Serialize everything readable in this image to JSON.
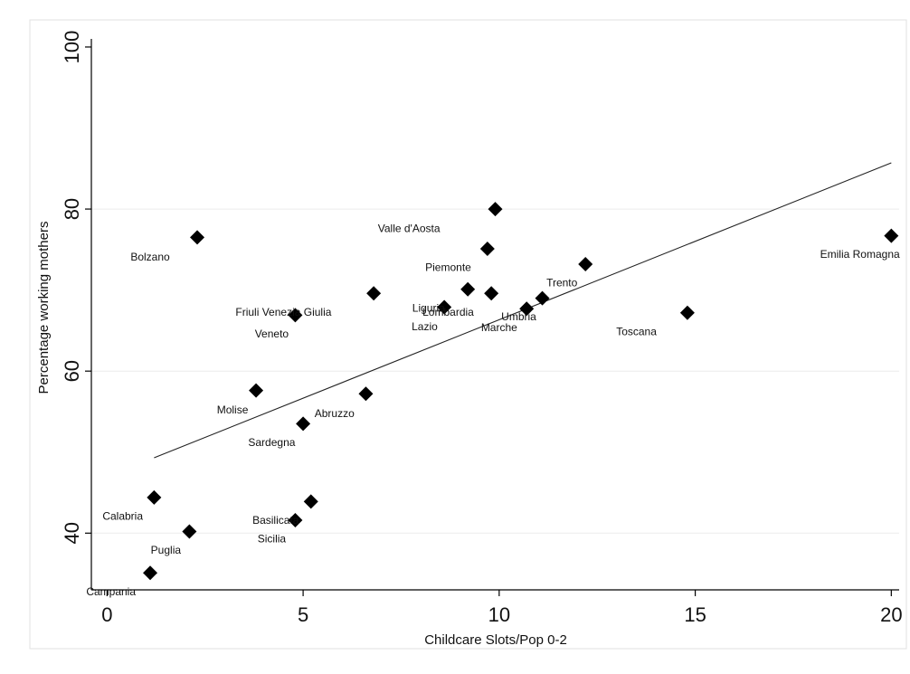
{
  "chart_data": {
    "type": "scatter",
    "title": "",
    "xlabel": "Childcare Slots/Pop 0-2",
    "ylabel": "Percentage working mothers",
    "xlim": [
      -0.4,
      20.2
    ],
    "ylim": [
      33,
      101
    ],
    "xticks": [
      0,
      5,
      10,
      15,
      20
    ],
    "yticks": [
      40,
      60,
      80,
      100
    ],
    "grid": "horizontal",
    "legend": "none",
    "marker_color": "#000000",
    "fit_line": {
      "x": [
        1.2,
        20
      ],
      "y": [
        49.3,
        85.7
      ]
    },
    "points": [
      {
        "name": "Valle d'Aosta",
        "x": 9.9,
        "y": 80.0,
        "label_dx": -2.2,
        "label_dy": 2.4,
        "anchor": "middle"
      },
      {
        "name": "Bolzano",
        "x": 2.3,
        "y": 76.5,
        "label_dx": -0.7,
        "label_dy": 2.4,
        "anchor": "end"
      },
      {
        "name": "Piemonte",
        "x": 9.7,
        "y": 75.1,
        "label_dx": -1.0,
        "label_dy": 2.3,
        "anchor": "middle"
      },
      {
        "name": "Emilia Romagna",
        "x": 20.0,
        "y": 76.7,
        "label_dx": -0.8,
        "label_dy": 2.3,
        "anchor": "middle"
      },
      {
        "name": "Trento",
        "x": 12.2,
        "y": 73.2,
        "label_dx": -0.6,
        "label_dy": 2.3,
        "anchor": "middle"
      },
      {
        "name": "Friuli Venezia Giulia",
        "x": 6.8,
        "y": 69.6,
        "label_dx": -2.3,
        "label_dy": 2.3,
        "anchor": "middle"
      },
      {
        "name": "Liguria",
        "x": 9.2,
        "y": 70.1,
        "label_dx": -1.0,
        "label_dy": 2.3,
        "anchor": "middle"
      },
      {
        "name": "Lombardia",
        "x": 9.8,
        "y": 69.6,
        "label_dx": -1.1,
        "label_dy": 2.3,
        "anchor": "middle"
      },
      {
        "name": "Umbria",
        "x": 11.1,
        "y": 69.0,
        "label_dx": -0.6,
        "label_dy": 2.3,
        "anchor": "middle"
      },
      {
        "name": "Lazio",
        "x": 8.6,
        "y": 67.9,
        "label_dx": -0.5,
        "label_dy": 2.4,
        "anchor": "middle"
      },
      {
        "name": "Marche",
        "x": 10.7,
        "y": 67.7,
        "label_dx": -0.7,
        "label_dy": 2.3,
        "anchor": "middle"
      },
      {
        "name": "Veneto",
        "x": 4.8,
        "y": 66.9,
        "label_dx": -0.6,
        "label_dy": 2.3,
        "anchor": "middle"
      },
      {
        "name": "Toscana",
        "x": 14.8,
        "y": 67.2,
        "label_dx": -1.3,
        "label_dy": 2.3,
        "anchor": "middle"
      },
      {
        "name": "Molise",
        "x": 3.8,
        "y": 57.6,
        "label_dx": -0.6,
        "label_dy": 2.4,
        "anchor": "middle"
      },
      {
        "name": "Abruzzo",
        "x": 6.6,
        "y": 57.2,
        "label_dx": -0.8,
        "label_dy": 2.4,
        "anchor": "middle"
      },
      {
        "name": "Sardegna",
        "x": 5.0,
        "y": 53.5,
        "label_dx": -0.8,
        "label_dy": 2.3,
        "anchor": "middle"
      },
      {
        "name": "Calabria",
        "x": 1.2,
        "y": 44.4,
        "label_dx": -0.8,
        "label_dy": 2.3,
        "anchor": "middle"
      },
      {
        "name": "Basilicata",
        "x": 5.2,
        "y": 43.9,
        "label_dx": -0.9,
        "label_dy": 2.3,
        "anchor": "middle"
      },
      {
        "name": "Sicilia",
        "x": 4.8,
        "y": 41.6,
        "label_dx": -0.6,
        "label_dy": 2.3,
        "anchor": "middle"
      },
      {
        "name": "Puglia",
        "x": 2.1,
        "y": 40.2,
        "label_dx": -0.6,
        "label_dy": 2.3,
        "anchor": "middle"
      },
      {
        "name": "Campania",
        "x": 1.1,
        "y": 35.1,
        "label_dx": -1.0,
        "label_dy": 2.3,
        "anchor": "middle"
      }
    ]
  }
}
